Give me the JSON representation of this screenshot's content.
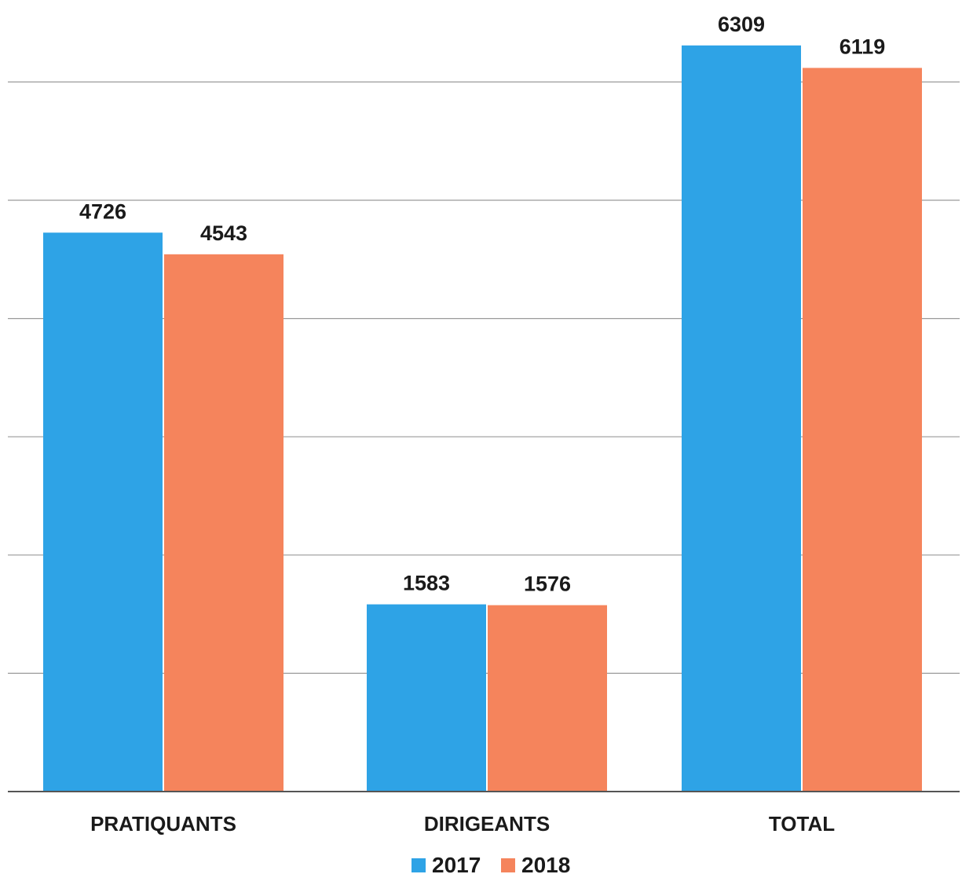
{
  "chart_data": {
    "type": "bar",
    "categories": [
      "PRATIQUANTS",
      "DIRIGEANTS",
      "TOTAL"
    ],
    "series": [
      {
        "name": "2017",
        "values": [
          4726,
          1583,
          6309
        ],
        "color": "#2ea3e6"
      },
      {
        "name": "2018",
        "values": [
          4543,
          1576,
          6119
        ],
        "color": "#f5845c"
      }
    ],
    "title": "",
    "xlabel": "",
    "ylabel": "",
    "ylim": [
      0,
      7000
    ],
    "grid": true,
    "legend": "bottom-center"
  }
}
